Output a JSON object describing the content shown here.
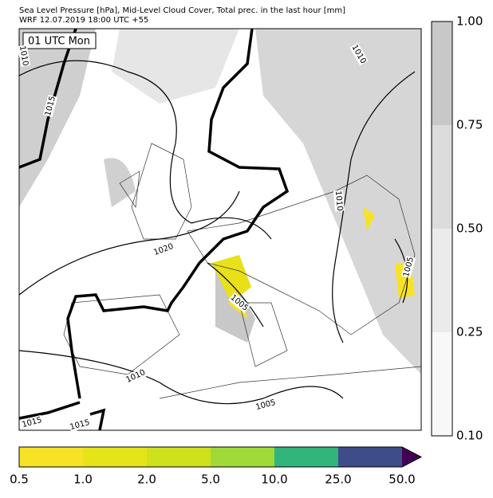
{
  "header": {
    "line1": "Sea Level Pressure [hPa], Mid-Level Cloud Cover, Total prec. in the last hour [mm]",
    "line2": "WRF 12.07.2019 18:00 UTC +55"
  },
  "map": {
    "time_label": "01 UTC Mon",
    "isobar_labels": [
      "1010",
      "1015",
      "1020",
      "1010",
      "1010",
      "1005",
      "1005",
      "1010",
      "1005",
      "1015",
      "1015"
    ]
  },
  "cloud_colorbar": {
    "labels": [
      "1.00",
      "0.75",
      "0.50",
      "0.25",
      "0.10"
    ],
    "colors": [
      "#c8c8c8",
      "#dcdcdc",
      "#ebebeb",
      "#f8f8f8"
    ]
  },
  "precip_colorbar": {
    "labels": [
      "0.5",
      "1.0",
      "2.0",
      "5.0",
      "10.0",
      "25.0",
      "50.0"
    ],
    "colors": [
      "#f7e225",
      "#e5e419",
      "#cfe11c",
      "#a0da39",
      "#31b57b",
      "#3e4c8a",
      "#440154"
    ]
  }
}
